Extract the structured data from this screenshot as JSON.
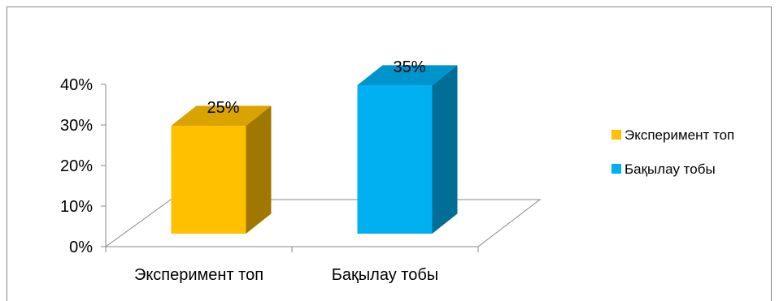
{
  "chart_data": {
    "type": "bar",
    "categories": [
      "Эксперимент топ",
      "Бақылау  тобы"
    ],
    "values": [
      25,
      35
    ],
    "data_labels": [
      "25%",
      "35%"
    ],
    "ylim": [
      0,
      40
    ],
    "yticks": [
      {
        "value": 0,
        "label": "0%"
      },
      {
        "value": 10,
        "label": "10%"
      },
      {
        "value": 20,
        "label": "20%"
      },
      {
        "value": 30,
        "label": "30%"
      },
      {
        "value": 40,
        "label": "40%"
      }
    ],
    "legend": {
      "placement": "right",
      "entries": [
        {
          "label": "Эксперимент топ",
          "color": "#ffc000"
        },
        {
          "label": "Бақылау  тобы",
          "color": "#00b0f0"
        }
      ]
    },
    "grid": false,
    "style": "3d-column",
    "colors": {
      "bars": [
        "#ffc000",
        "#00b0f0"
      ],
      "bar_sides": [
        "#a07800",
        "#006e96"
      ],
      "bar_tops": [
        "#d9a300",
        "#0094cc"
      ],
      "axis": "#878787",
      "frame": "#878787"
    }
  }
}
